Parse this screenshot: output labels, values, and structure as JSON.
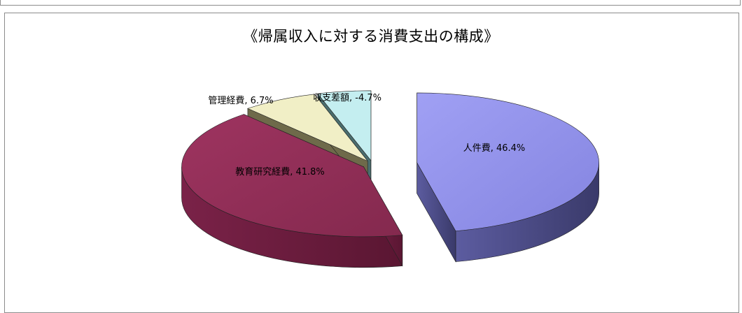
{
  "chart_data": {
    "type": "pie",
    "style": "3d-exploded",
    "title": "《帰属収入に対する消費支出の構成》",
    "slices": [
      {
        "name": "人件費",
        "value": 46.4,
        "label": "人件費, 46.4%",
        "color": "#9595ec",
        "side_color": "#52528c"
      },
      {
        "name": "教育研究経費",
        "value": 41.8,
        "label": "教育研究経費, 41.8%",
        "color": "#933058",
        "side_color": "#6e2040"
      },
      {
        "name": "管理経費",
        "value": 6.7,
        "label": "管理経費, 6.7%",
        "color": "#f1efc6",
        "side_color": "#6e6a4a"
      },
      {
        "name": "収支差額",
        "value": -4.7,
        "label": "収支差額, -4.7%",
        "color": "#c4eef0",
        "side_color": "#4a6e6e"
      }
    ]
  }
}
